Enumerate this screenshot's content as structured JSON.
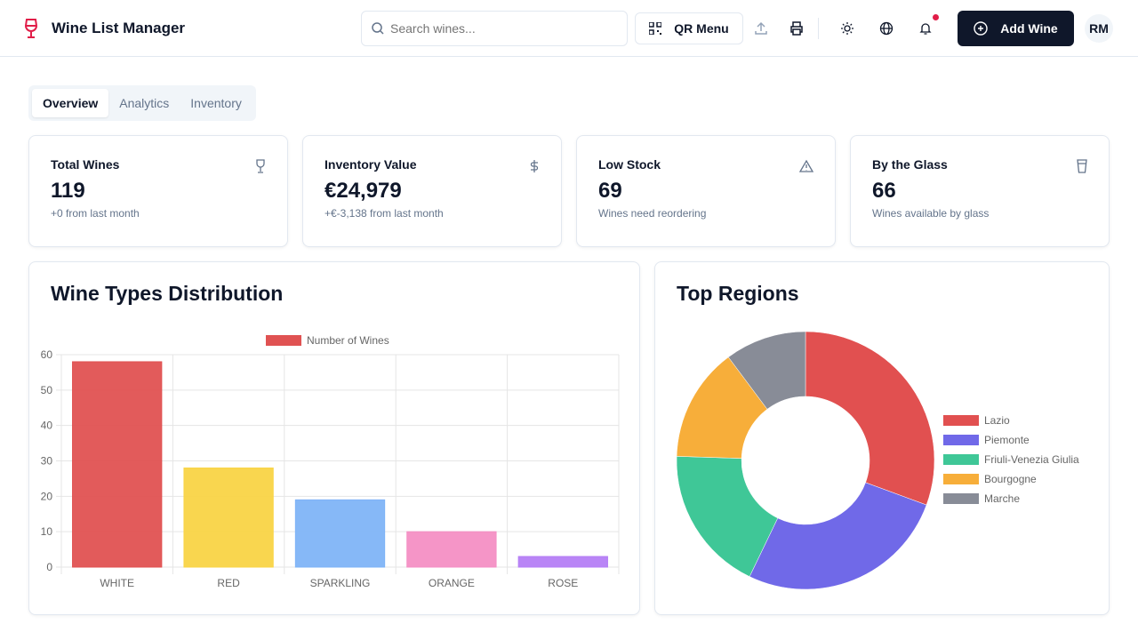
{
  "app": {
    "title": "Wine List Manager"
  },
  "header": {
    "search_placeholder": "Search wines...",
    "qr_label": "QR Menu",
    "add_label": "Add Wine",
    "avatar": "RM"
  },
  "tabs": [
    {
      "label": "Overview"
    },
    {
      "label": "Analytics"
    },
    {
      "label": "Inventory"
    }
  ],
  "stats": [
    {
      "title": "Total Wines",
      "value": "119",
      "sub": "+0 from last month",
      "icon": "wine-glass-icon"
    },
    {
      "title": "Inventory Value",
      "value": "€24,979",
      "sub": "+€-3,138 from last month",
      "icon": "dollar-icon"
    },
    {
      "title": "Low Stock",
      "value": "69",
      "sub": "Wines need reordering",
      "icon": "warning-icon"
    },
    {
      "title": "By the Glass",
      "value": "66",
      "sub": "Wines available by glass",
      "icon": "glass-icon"
    }
  ],
  "chart_data": [
    {
      "type": "bar",
      "title": "Wine Types Distribution",
      "legend": "Number of Wines",
      "categories": [
        "WHITE",
        "RED",
        "SPARKLING",
        "ORANGE",
        "ROSE"
      ],
      "values": [
        58,
        28,
        19,
        10,
        3
      ],
      "colors": [
        "#e05252",
        "#f9d446",
        "#7fb4f7",
        "#f48fc4",
        "#b57ef5"
      ],
      "ylim": [
        0,
        60
      ],
      "yticks": [
        0,
        10,
        20,
        30,
        40,
        50,
        60
      ],
      "grid": true,
      "legend_position": "top"
    },
    {
      "type": "pie",
      "title": "Top Regions",
      "labels": [
        "Lazio",
        "Piemonte",
        "Friuli-Venezia Giulia",
        "Bourgogne",
        "Marche"
      ],
      "values": [
        15,
        13,
        9,
        7,
        5
      ],
      "colors": [
        "#e15050",
        "#7069e8",
        "#3fc797",
        "#f7ae3a",
        "#888c97"
      ],
      "legend_position": "right"
    }
  ]
}
